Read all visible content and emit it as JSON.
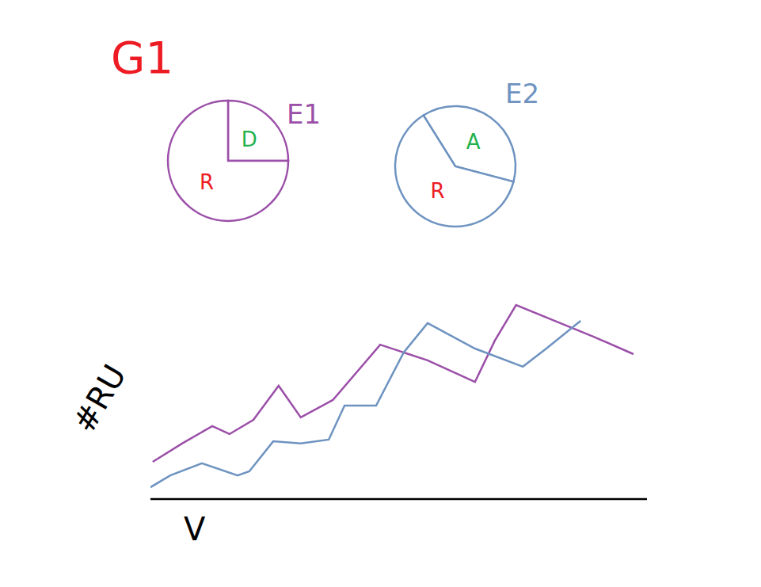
{
  "title": "G1",
  "chart_data": [
    {
      "type": "pie",
      "title": "E1",
      "color": "#9b4fa8",
      "categories": [
        "D",
        "R"
      ],
      "values": [
        25,
        75
      ],
      "colors": [
        "#22b14c",
        "#ed1c24"
      ]
    },
    {
      "type": "pie",
      "title": "E2",
      "color": "#6e93c0",
      "categories": [
        "A",
        "R"
      ],
      "values": [
        38,
        62
      ],
      "colors": [
        "#22b14c",
        "#ed1c24"
      ]
    },
    {
      "type": "line",
      "x_label": "V",
      "y_label": "#RU",
      "xlim": [
        0,
        110
      ],
      "ylim": [
        0,
        100
      ],
      "tick_labels": false,
      "series": [
        {
          "name": "E1",
          "color": "#9b4fa8",
          "x": [
            0.5,
            7.0,
            13.7,
            17.5,
            22.8,
            28.4,
            33.3,
            40.4,
            50.9,
            61.4,
            71.9,
            76.3,
            81.0,
            89.5,
            98.2,
            107
          ],
          "values": [
            15.4,
            23.0,
            30.2,
            26.9,
            32.8,
            46.9,
            33.8,
            41.0,
            63.9,
            57.4,
            48.5,
            65.6,
            80.3,
            73.8,
            67.2,
            60
          ]
        },
        {
          "name": "E2",
          "color": "#6e93c0",
          "x": [
            0,
            4.4,
            11.4,
            19.3,
            21.9,
            27.2,
            33.3,
            39.5,
            43.0,
            50.0,
            56.1,
            61.4,
            71.9,
            82.5,
            87.7,
            95.3
          ],
          "values": [
            4.9,
            9.8,
            14.8,
            9.8,
            11.5,
            23.9,
            23.0,
            24.6,
            38.7,
            38.7,
            60.7,
            72.8,
            62.3,
            54.8,
            62.3,
            73.8
          ]
        }
      ]
    }
  ]
}
